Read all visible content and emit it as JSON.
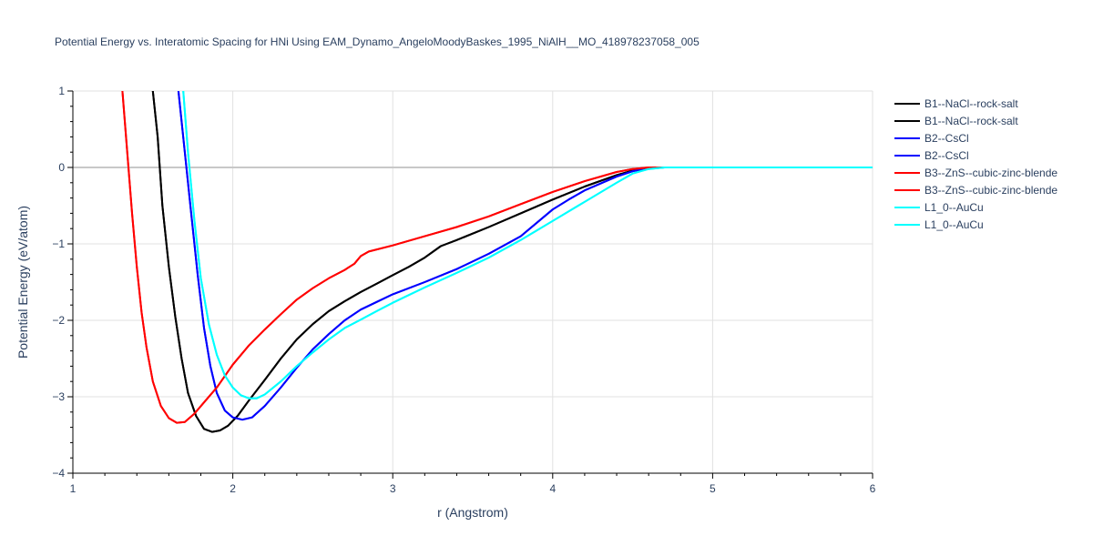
{
  "chart_data": {
    "type": "line",
    "title": "Potential Energy vs. Interatomic Spacing for HNi Using EAM_Dynamo_AngeloMoodyBaskes_1995_NiAlH__MO_418978237058_005",
    "xlabel": "r (Angstrom)",
    "ylabel": "Potential Energy (eV/atom)",
    "xlim": [
      1,
      6
    ],
    "ylim": [
      -4,
      1
    ],
    "xticks": [
      1,
      2,
      3,
      4,
      5,
      6
    ],
    "yticks": [
      1,
      0,
      -1,
      -2,
      -3,
      -4
    ],
    "grid": true,
    "legend_position": "right",
    "series": [
      {
        "name": "B1--NaCl--rock-salt",
        "color": "#000000",
        "points": [
          [
            1.5,
            1.0
          ],
          [
            1.53,
            0.4
          ],
          [
            1.56,
            -0.5
          ],
          [
            1.6,
            -1.3
          ],
          [
            1.64,
            -1.95
          ],
          [
            1.68,
            -2.5
          ],
          [
            1.72,
            -2.95
          ],
          [
            1.77,
            -3.25
          ],
          [
            1.82,
            -3.42
          ],
          [
            1.87,
            -3.46
          ],
          [
            1.92,
            -3.44
          ],
          [
            1.97,
            -3.38
          ],
          [
            2.03,
            -3.25
          ],
          [
            2.1,
            -3.05
          ],
          [
            2.2,
            -2.78
          ],
          [
            2.3,
            -2.5
          ],
          [
            2.4,
            -2.25
          ],
          [
            2.5,
            -2.05
          ],
          [
            2.6,
            -1.88
          ],
          [
            2.7,
            -1.75
          ],
          [
            2.8,
            -1.63
          ],
          [
            2.9,
            -1.52
          ],
          [
            3.0,
            -1.41
          ],
          [
            3.1,
            -1.3
          ],
          [
            3.2,
            -1.18
          ],
          [
            3.3,
            -1.03
          ],
          [
            3.4,
            -0.95
          ],
          [
            3.6,
            -0.78
          ],
          [
            3.8,
            -0.6
          ],
          [
            4.0,
            -0.42
          ],
          [
            4.2,
            -0.25
          ],
          [
            4.4,
            -0.1
          ],
          [
            4.5,
            -0.04
          ],
          [
            4.6,
            0.0
          ],
          [
            6.0,
            0.0
          ]
        ]
      },
      {
        "name": "B1--NaCl--rock-salt",
        "color": "#000000",
        "points": [
          [
            1.5,
            1.0
          ],
          [
            1.53,
            0.4
          ],
          [
            1.56,
            -0.5
          ],
          [
            1.6,
            -1.3
          ],
          [
            1.64,
            -1.95
          ],
          [
            1.68,
            -2.5
          ],
          [
            1.72,
            -2.95
          ],
          [
            1.77,
            -3.25
          ],
          [
            1.82,
            -3.42
          ],
          [
            1.87,
            -3.46
          ],
          [
            1.92,
            -3.44
          ],
          [
            1.97,
            -3.38
          ],
          [
            2.03,
            -3.25
          ],
          [
            2.1,
            -3.05
          ],
          [
            2.2,
            -2.78
          ],
          [
            2.3,
            -2.5
          ],
          [
            2.4,
            -2.25
          ],
          [
            2.5,
            -2.05
          ],
          [
            2.6,
            -1.88
          ],
          [
            2.7,
            -1.75
          ],
          [
            2.8,
            -1.63
          ],
          [
            2.9,
            -1.52
          ],
          [
            3.0,
            -1.41
          ],
          [
            3.1,
            -1.3
          ],
          [
            3.2,
            -1.18
          ],
          [
            3.3,
            -1.03
          ],
          [
            3.4,
            -0.95
          ],
          [
            3.6,
            -0.78
          ],
          [
            3.8,
            -0.6
          ],
          [
            4.0,
            -0.42
          ],
          [
            4.2,
            -0.25
          ],
          [
            4.4,
            -0.1
          ],
          [
            4.5,
            -0.04
          ],
          [
            4.6,
            0.0
          ],
          [
            6.0,
            0.0
          ]
        ]
      },
      {
        "name": "B2--CsCl",
        "color": "#0000ff",
        "points": [
          [
            1.66,
            1.0
          ],
          [
            1.7,
            0.2
          ],
          [
            1.74,
            -0.6
          ],
          [
            1.78,
            -1.4
          ],
          [
            1.82,
            -2.1
          ],
          [
            1.86,
            -2.6
          ],
          [
            1.9,
            -2.95
          ],
          [
            1.95,
            -3.18
          ],
          [
            2.0,
            -3.27
          ],
          [
            2.06,
            -3.3
          ],
          [
            2.12,
            -3.27
          ],
          [
            2.2,
            -3.12
          ],
          [
            2.3,
            -2.88
          ],
          [
            2.4,
            -2.62
          ],
          [
            2.5,
            -2.38
          ],
          [
            2.6,
            -2.18
          ],
          [
            2.7,
            -2.0
          ],
          [
            2.8,
            -1.86
          ],
          [
            2.9,
            -1.76
          ],
          [
            3.0,
            -1.66
          ],
          [
            3.2,
            -1.5
          ],
          [
            3.4,
            -1.33
          ],
          [
            3.6,
            -1.13
          ],
          [
            3.8,
            -0.9
          ],
          [
            4.0,
            -0.55
          ],
          [
            4.1,
            -0.42
          ],
          [
            4.2,
            -0.3
          ],
          [
            4.4,
            -0.12
          ],
          [
            4.5,
            -0.05
          ],
          [
            4.6,
            -0.01
          ],
          [
            4.7,
            0.0
          ],
          [
            6.0,
            0.0
          ]
        ]
      },
      {
        "name": "B2--CsCl",
        "color": "#0000ff",
        "points": [
          [
            1.66,
            1.0
          ],
          [
            1.7,
            0.2
          ],
          [
            1.74,
            -0.6
          ],
          [
            1.78,
            -1.4
          ],
          [
            1.82,
            -2.1
          ],
          [
            1.86,
            -2.6
          ],
          [
            1.9,
            -2.95
          ],
          [
            1.95,
            -3.18
          ],
          [
            2.0,
            -3.27
          ],
          [
            2.06,
            -3.3
          ],
          [
            2.12,
            -3.27
          ],
          [
            2.2,
            -3.12
          ],
          [
            2.3,
            -2.88
          ],
          [
            2.4,
            -2.62
          ],
          [
            2.5,
            -2.38
          ],
          [
            2.6,
            -2.18
          ],
          [
            2.7,
            -2.0
          ],
          [
            2.8,
            -1.86
          ],
          [
            2.9,
            -1.76
          ],
          [
            3.0,
            -1.66
          ],
          [
            3.2,
            -1.5
          ],
          [
            3.4,
            -1.33
          ],
          [
            3.6,
            -1.13
          ],
          [
            3.8,
            -0.9
          ],
          [
            4.0,
            -0.55
          ],
          [
            4.1,
            -0.42
          ],
          [
            4.2,
            -0.3
          ],
          [
            4.4,
            -0.12
          ],
          [
            4.5,
            -0.05
          ],
          [
            4.6,
            -0.01
          ],
          [
            4.7,
            0.0
          ],
          [
            6.0,
            0.0
          ]
        ]
      },
      {
        "name": "B3--ZnS--cubic-zinc-blende",
        "color": "#ff0000",
        "points": [
          [
            1.31,
            1.0
          ],
          [
            1.34,
            0.2
          ],
          [
            1.37,
            -0.6
          ],
          [
            1.4,
            -1.3
          ],
          [
            1.43,
            -1.9
          ],
          [
            1.46,
            -2.35
          ],
          [
            1.5,
            -2.8
          ],
          [
            1.55,
            -3.12
          ],
          [
            1.6,
            -3.28
          ],
          [
            1.65,
            -3.34
          ],
          [
            1.7,
            -3.33
          ],
          [
            1.76,
            -3.22
          ],
          [
            1.83,
            -3.05
          ],
          [
            1.9,
            -2.88
          ],
          [
            2.0,
            -2.58
          ],
          [
            2.1,
            -2.33
          ],
          [
            2.2,
            -2.12
          ],
          [
            2.3,
            -1.92
          ],
          [
            2.4,
            -1.73
          ],
          [
            2.5,
            -1.58
          ],
          [
            2.6,
            -1.45
          ],
          [
            2.7,
            -1.34
          ],
          [
            2.76,
            -1.26
          ],
          [
            2.8,
            -1.16
          ],
          [
            2.85,
            -1.1
          ],
          [
            3.0,
            -1.02
          ],
          [
            3.2,
            -0.9
          ],
          [
            3.4,
            -0.78
          ],
          [
            3.6,
            -0.64
          ],
          [
            3.8,
            -0.48
          ],
          [
            4.0,
            -0.32
          ],
          [
            4.2,
            -0.18
          ],
          [
            4.4,
            -0.06
          ],
          [
            4.5,
            -0.02
          ],
          [
            4.6,
            0.0
          ],
          [
            6.0,
            0.0
          ]
        ]
      },
      {
        "name": "B3--ZnS--cubic-zinc-blende",
        "color": "#ff0000",
        "points": [
          [
            1.31,
            1.0
          ],
          [
            1.34,
            0.2
          ],
          [
            1.37,
            -0.6
          ],
          [
            1.4,
            -1.3
          ],
          [
            1.43,
            -1.9
          ],
          [
            1.46,
            -2.35
          ],
          [
            1.5,
            -2.8
          ],
          [
            1.55,
            -3.12
          ],
          [
            1.6,
            -3.28
          ],
          [
            1.65,
            -3.34
          ],
          [
            1.7,
            -3.33
          ],
          [
            1.76,
            -3.22
          ],
          [
            1.83,
            -3.05
          ],
          [
            1.9,
            -2.88
          ],
          [
            2.0,
            -2.58
          ],
          [
            2.1,
            -2.33
          ],
          [
            2.2,
            -2.12
          ],
          [
            2.3,
            -1.92
          ],
          [
            2.4,
            -1.73
          ],
          [
            2.5,
            -1.58
          ],
          [
            2.6,
            -1.45
          ],
          [
            2.7,
            -1.34
          ],
          [
            2.76,
            -1.26
          ],
          [
            2.8,
            -1.16
          ],
          [
            2.85,
            -1.1
          ],
          [
            3.0,
            -1.02
          ],
          [
            3.2,
            -0.9
          ],
          [
            3.4,
            -0.78
          ],
          [
            3.6,
            -0.64
          ],
          [
            3.8,
            -0.48
          ],
          [
            4.0,
            -0.32
          ],
          [
            4.2,
            -0.18
          ],
          [
            4.4,
            -0.06
          ],
          [
            4.5,
            -0.02
          ],
          [
            4.6,
            0.0
          ],
          [
            6.0,
            0.0
          ]
        ]
      },
      {
        "name": "L1_0--AuCu",
        "color": "#00ffff",
        "points": [
          [
            1.69,
            1.0
          ],
          [
            1.72,
            0.2
          ],
          [
            1.76,
            -0.7
          ],
          [
            1.8,
            -1.45
          ],
          [
            1.85,
            -2.05
          ],
          [
            1.9,
            -2.45
          ],
          [
            1.95,
            -2.72
          ],
          [
            2.0,
            -2.88
          ],
          [
            2.05,
            -2.98
          ],
          [
            2.1,
            -3.02
          ],
          [
            2.15,
            -3.02
          ],
          [
            2.2,
            -2.97
          ],
          [
            2.3,
            -2.8
          ],
          [
            2.4,
            -2.6
          ],
          [
            2.5,
            -2.42
          ],
          [
            2.6,
            -2.25
          ],
          [
            2.7,
            -2.1
          ],
          [
            2.8,
            -1.99
          ],
          [
            2.9,
            -1.88
          ],
          [
            3.0,
            -1.77
          ],
          [
            3.2,
            -1.57
          ],
          [
            3.4,
            -1.38
          ],
          [
            3.6,
            -1.18
          ],
          [
            3.8,
            -0.95
          ],
          [
            4.0,
            -0.7
          ],
          [
            4.2,
            -0.45
          ],
          [
            4.4,
            -0.2
          ],
          [
            4.5,
            -0.08
          ],
          [
            4.6,
            -0.02
          ],
          [
            4.7,
            0.0
          ],
          [
            6.0,
            0.0
          ]
        ]
      },
      {
        "name": "L1_0--AuCu",
        "color": "#00ffff",
        "points": [
          [
            1.69,
            1.0
          ],
          [
            1.72,
            0.2
          ],
          [
            1.76,
            -0.7
          ],
          [
            1.8,
            -1.45
          ],
          [
            1.85,
            -2.05
          ],
          [
            1.9,
            -2.45
          ],
          [
            1.95,
            -2.72
          ],
          [
            2.0,
            -2.88
          ],
          [
            2.05,
            -2.98
          ],
          [
            2.1,
            -3.02
          ],
          [
            2.15,
            -3.02
          ],
          [
            2.2,
            -2.97
          ],
          [
            2.3,
            -2.8
          ],
          [
            2.4,
            -2.6
          ],
          [
            2.5,
            -2.42
          ],
          [
            2.6,
            -2.25
          ],
          [
            2.7,
            -2.1
          ],
          [
            2.8,
            -1.99
          ],
          [
            2.9,
            -1.88
          ],
          [
            3.0,
            -1.77
          ],
          [
            3.2,
            -1.57
          ],
          [
            3.4,
            -1.38
          ],
          [
            3.6,
            -1.18
          ],
          [
            3.8,
            -0.95
          ],
          [
            4.0,
            -0.7
          ],
          [
            4.2,
            -0.45
          ],
          [
            4.4,
            -0.2
          ],
          [
            4.5,
            -0.08
          ],
          [
            4.6,
            -0.02
          ],
          [
            4.7,
            0.0
          ],
          [
            6.0,
            0.0
          ]
        ]
      }
    ]
  }
}
